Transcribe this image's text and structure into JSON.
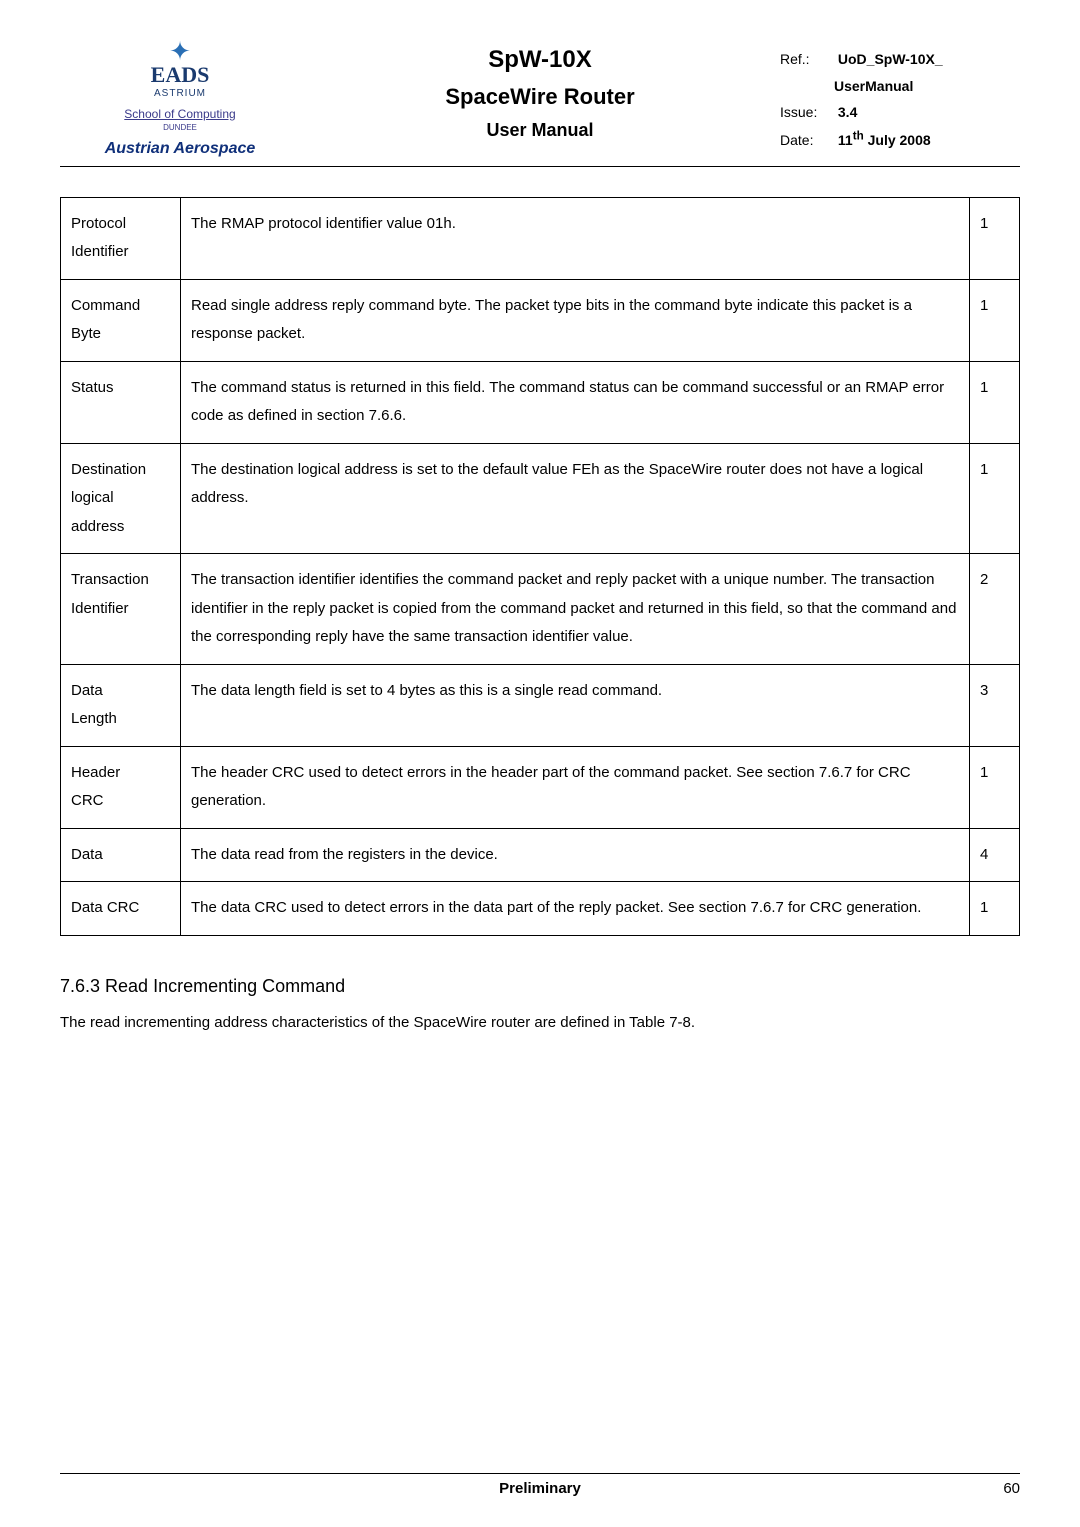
{
  "header": {
    "logo": {
      "brand": "EADS",
      "sub": "ASTRIUM",
      "school": "School of Computing",
      "dundee": "DUNDEE",
      "austrian": "Austrian Aerospace"
    },
    "title_main": "SpW-10X",
    "title_sub": "SpaceWire Router",
    "title_tert": "User Manual",
    "meta": {
      "ref_label": "Ref.:",
      "ref": "UoD_SpW-10X_",
      "ref2": "UserManual",
      "issue_label": "Issue:",
      "issue": "3.4",
      "date_label": "Date:",
      "date": "11th July 2008"
    }
  },
  "table": {
    "rows": [
      {
        "c1a": "Protocol",
        "c1b": "Identifier",
        "c2": "The RMAP protocol identifier value 01h.",
        "c3": "1"
      },
      {
        "c1a": "Command",
        "c1b": "Byte",
        "c2": "Read single address reply command byte. The packet type bits in the command byte indicate this packet is a response packet.",
        "c3": "1"
      },
      {
        "c1a": "Status",
        "c2": "The command status is returned in this field. The command status can be command successful or an RMAP error code as defined in section 7.6.6.",
        "c3": "1"
      },
      {
        "c1a": "Destination",
        "c1b": "logical",
        "c1c": "address",
        "c2": "The destination logical address is set to the default value FEh as the SpaceWire router does not have a logical address.",
        "c3": "1"
      },
      {
        "c1a": "Transaction",
        "c1b": "Identifier",
        "c2": "The transaction identifier identifies the command packet and reply packet with a unique number. The transaction identifier in the reply packet is copied from the command packet and returned in this field, so that the command and the corresponding reply have the same transaction identifier value.",
        "c3": "2"
      },
      {
        "c1a": "Data",
        "c1b": "Length",
        "c2": "The data length field is set to 4 bytes as this is a single read command.",
        "c3": "3"
      },
      {
        "c1a": "Header",
        "c1b": "CRC",
        "c2": "The header CRC used to detect errors in the header part of the command packet. See section 7.6.7 for CRC generation.",
        "c3": "1"
      },
      {
        "c1a": "Data",
        "c2": "The data read from the registers in the device.",
        "c3": "4"
      },
      {
        "c1a": "Data CRC",
        "c2": "The data CRC used to detect errors in the data part of the reply packet. See section 7.6.7 for CRC generation.",
        "c3": "1"
      }
    ]
  },
  "section": {
    "heading": "7.6.3  Read Incrementing Command",
    "body": "The read incrementing address characteristics of the SpaceWire router are defined in Table 7-8."
  },
  "footer": {
    "center": "Preliminary",
    "page": "60"
  }
}
